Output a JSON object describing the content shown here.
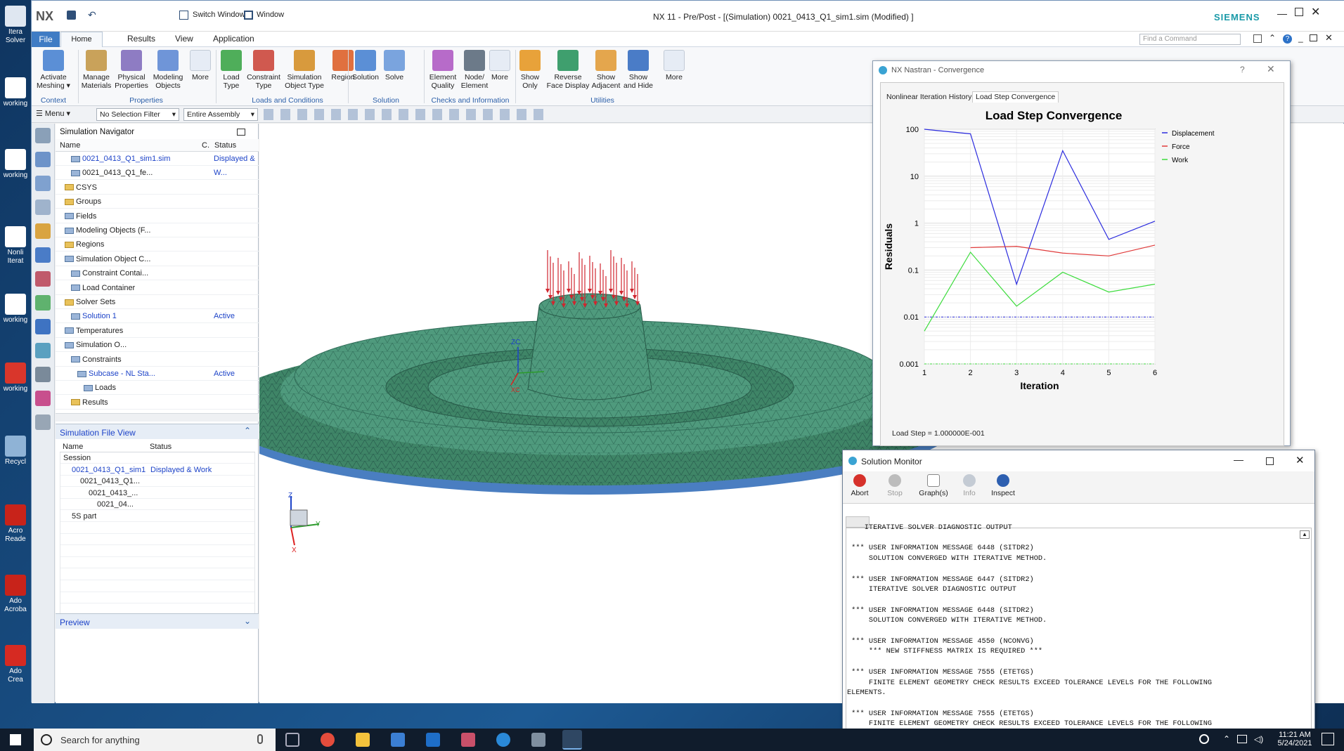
{
  "desktop": {
    "icons": [
      {
        "label": "Itera Solver"
      },
      {
        "label": "working"
      },
      {
        "label": "working"
      },
      {
        "label": "Nonli Iterat"
      },
      {
        "label": "working"
      },
      {
        "label": "working"
      },
      {
        "label": "Recycl"
      },
      {
        "label": "Acro Reade"
      },
      {
        "label": "Ado Acroba"
      },
      {
        "label": "Ado Crea"
      }
    ]
  },
  "titlebar": {
    "nx_logo": "NX",
    "switch_window": "Switch Window",
    "window_menu": "Window",
    "title": "NX 11 - Pre/Post - [(Simulation) 0021_0413_Q1_sim1.sim (Modified) ]",
    "brand": "SIEMENS",
    "find_command_placeholder": "Find a Command"
  },
  "ribbon_tabs": [
    "File",
    "Home",
    "Results",
    "View",
    "Application"
  ],
  "ribbon": {
    "buttons": [
      {
        "label": "Activate Meshing",
        "color": "#5b8fd6"
      },
      {
        "label": "Manage Materials",
        "color": "#c9a25a"
      },
      {
        "label": "Physical Properties",
        "color": "#8e7cc3"
      },
      {
        "label": "Modeling Objects",
        "color": "#6f95d8"
      },
      {
        "label": "More",
        "color": "#5c8ad0"
      },
      {
        "label": "Load Type",
        "color": "#4fae5a"
      },
      {
        "label": "Constraint Type",
        "color": "#d0594f"
      },
      {
        "label": "Simulation Object Type",
        "color": "#d89a3d"
      },
      {
        "label": "Region",
        "color": "#e0703f"
      },
      {
        "label": "Solution",
        "color": "#5b8fd6"
      },
      {
        "label": "Solve",
        "color": "#7aa4de"
      },
      {
        "label": "Element Quality",
        "color": "#b76bc9"
      },
      {
        "label": "Node/ Element",
        "color": "#6c7a89"
      },
      {
        "label": "More",
        "color": "#5c8ad0"
      },
      {
        "label": "Show Only",
        "color": "#e8a23a"
      },
      {
        "label": "Reverse Face Display",
        "color": "#3f9f6e"
      },
      {
        "label": "Show Adjacent",
        "color": "#e4a64d"
      },
      {
        "label": "Show and Hide",
        "color": "#4a7cc7"
      },
      {
        "label": "More",
        "color": "#5c8ad0"
      }
    ],
    "groups": [
      "Context",
      "Properties",
      "Loads and Conditions",
      "Solution",
      "Checks and Information",
      "Utilities"
    ]
  },
  "toolbar2": {
    "menu": "Menu",
    "selection_filter": "No Selection Filter",
    "assembly_scope": "Entire Assembly"
  },
  "navigator": {
    "title": "Simulation Navigator",
    "columns": [
      "Name",
      "C.",
      "Status"
    ],
    "rows": [
      {
        "name": "0021_0413_Q1_sim1.sim",
        "status": "Displayed & W...",
        "blue": true
      },
      {
        "name": "0021_0413_Q1_fe...",
        "status": ""
      },
      {
        "name": "CSYS",
        "status": ""
      },
      {
        "name": "Groups",
        "status": ""
      },
      {
        "name": "Fields",
        "status": ""
      },
      {
        "name": "Modeling Objects (F...",
        "status": ""
      },
      {
        "name": "Regions",
        "status": ""
      },
      {
        "name": "Simulation Object C...",
        "status": ""
      },
      {
        "name": "Constraint Contai...",
        "status": ""
      },
      {
        "name": "Load Container",
        "status": ""
      },
      {
        "name": "Solver Sets",
        "status": ""
      },
      {
        "name": "Solution 1",
        "status": "Active",
        "blue": true
      },
      {
        "name": "Temperatures",
        "status": ""
      },
      {
        "name": "Simulation O...",
        "status": ""
      },
      {
        "name": "Constraints",
        "status": ""
      },
      {
        "name": "Subcase - NL Sta...",
        "status": "Active",
        "blue": true
      },
      {
        "name": "Loads",
        "status": ""
      },
      {
        "name": "Results",
        "status": ""
      }
    ]
  },
  "file_view": {
    "title": "Simulation File View",
    "columns": [
      "Name",
      "Status"
    ],
    "rows": [
      {
        "name": "Session",
        "status": ""
      },
      {
        "name": "0021_0413_Q1_sim1",
        "status": "Displayed & Work",
        "blue": true
      },
      {
        "name": "0021_0413_Q1...",
        "status": ""
      },
      {
        "name": "0021_0413_...",
        "status": ""
      },
      {
        "name": "0021_04...",
        "status": ""
      },
      {
        "name": "5S part",
        "status": ""
      }
    ],
    "preview": "Preview"
  },
  "viewport": {
    "axis_labels": {
      "z": "Z",
      "y": "Y",
      "x": "X",
      "zc": "ZC",
      "xc": "XC"
    }
  },
  "convergence": {
    "window_title": "NX Nastran - Convergence",
    "help": "?",
    "tabs": [
      "Nonlinear Iteration History",
      "Load Step Convergence"
    ],
    "load_step": "Load Step = 1.000000E-001"
  },
  "chart_data": {
    "type": "line",
    "title": "Load Step Convergence",
    "xlabel": "Iteration",
    "ylabel": "Residuals",
    "x": [
      1,
      2,
      3,
      4,
      5,
      6
    ],
    "xlim": [
      1,
      6
    ],
    "ylim": [
      0.001,
      100
    ],
    "yscale": "log",
    "yticks": [
      "100",
      "10",
      "1",
      "0.1",
      "0.01",
      "0.001"
    ],
    "xticks": [
      "1",
      "2",
      "3",
      "4",
      "5",
      "6"
    ],
    "grid": true,
    "legend_position": "right",
    "series": [
      {
        "name": "Displacement",
        "color": "#2b2bde",
        "x": [
          1,
          2,
          3,
          4,
          5,
          6
        ],
        "values": [
          100,
          80,
          0.05,
          35,
          0.45,
          1.1
        ]
      },
      {
        "name": "Force",
        "color": "#e03a3a",
        "x": [
          2,
          3,
          4,
          5,
          6
        ],
        "values": [
          0.3,
          0.32,
          0.23,
          0.2,
          0.34
        ]
      },
      {
        "name": "Work",
        "color": "#3ddc3d",
        "x": [
          1,
          2,
          3,
          4,
          5,
          6
        ],
        "values": [
          0.005,
          0.24,
          0.017,
          0.09,
          0.034,
          0.05
        ]
      }
    ],
    "thresholds": [
      {
        "color": "#2b2bde",
        "value": 0.01
      },
      {
        "color": "#3ddc3d",
        "value": 0.001
      }
    ]
  },
  "monitor": {
    "title": "Solution Monitor",
    "buttons": [
      "Abort",
      "Stop",
      "Graph(s)",
      "Info",
      "Inspect"
    ],
    "log": [
      "    ITERATIVE SOLVER DIAGNOSTIC OUTPUT",
      "",
      " *** USER INFORMATION MESSAGE 6448 (SITDR2)",
      "     SOLUTION CONVERGED WITH ITERATIVE METHOD.",
      "",
      " *** USER INFORMATION MESSAGE 6447 (SITDR2)",
      "     ITERATIVE SOLVER DIAGNOSTIC OUTPUT",
      "",
      " *** USER INFORMATION MESSAGE 6448 (SITDR2)",
      "     SOLUTION CONVERGED WITH ITERATIVE METHOD.",
      "",
      " *** USER INFORMATION MESSAGE 4550 (NCONVG)",
      "     *** NEW STIFFNESS MATRIX IS REQUIRED ***",
      "",
      " *** USER INFORMATION MESSAGE 7555 (ETETGS)",
      "     FINITE ELEMENT GEOMETRY CHECK RESULTS EXCEED TOLERANCE LEVELS FOR THE FOLLOWING",
      "ELEMENTS.",
      "",
      " *** USER INFORMATION MESSAGE 7555 (ETETGS)",
      "     FINITE ELEMENT GEOMETRY CHECK RESULTS EXCEED TOLERANCE LEVELS FOR THE FOLLOWING"
    ]
  },
  "taskbar": {
    "search_placeholder": "Search for anything",
    "time": "11:21 AM",
    "date": "5/24/2021"
  }
}
